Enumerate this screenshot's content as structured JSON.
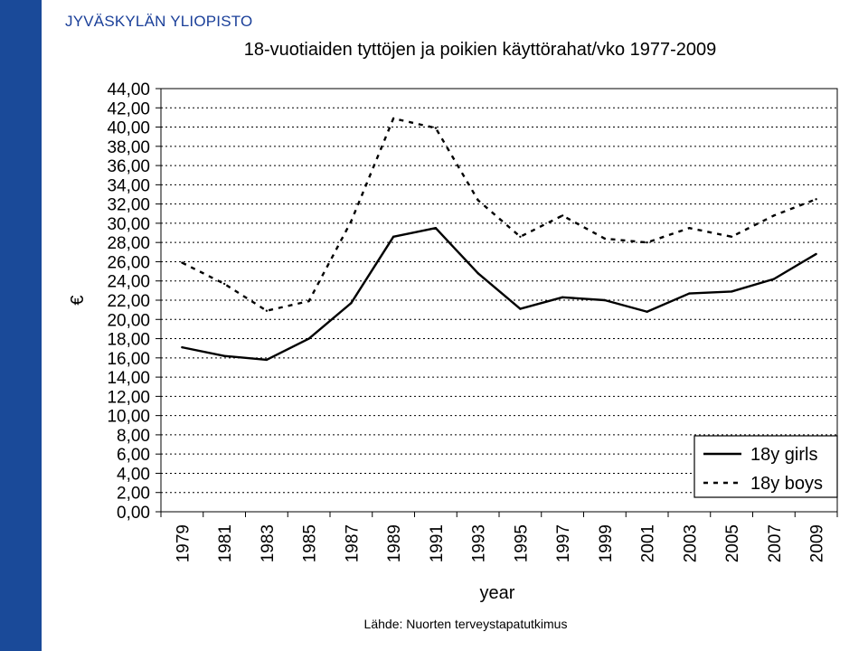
{
  "header": {
    "university": "JYVÄSKYLÄN YLIOPISTO",
    "title": "18-vuotiaiden tyttöjen ja poikien käyttörahat/vko 1977-2009"
  },
  "footer": {
    "source": "Lähde: Nuorten terveystapatutkimus"
  },
  "colors": {
    "side_band": "#1a4a99",
    "university_text": "#1a3f99",
    "series": "#000000",
    "grid": "#000000"
  },
  "chart_data": {
    "type": "line",
    "title": "18-vuotiaiden tyttöjen ja poikien käyttörahat/vko 1977-2009",
    "xlabel": "year",
    "ylabel": "€",
    "x": [
      "1979",
      "1981",
      "1983",
      "1985",
      "1987",
      "1989",
      "1991",
      "1993",
      "1995",
      "1997",
      "1999",
      "2001",
      "2003",
      "2005",
      "2007",
      "2009"
    ],
    "y_ticks": [
      "0,00",
      "2,00",
      "4,00",
      "6,00",
      "8,00",
      "10,00",
      "12,00",
      "14,00",
      "16,00",
      "18,00",
      "20,00",
      "22,00",
      "24,00",
      "26,00",
      "28,00",
      "30,00",
      "32,00",
      "34,00",
      "36,00",
      "38,00",
      "40,00",
      "42,00",
      "44,00"
    ],
    "ylim": [
      0,
      44
    ],
    "grid": "horizontal dotted",
    "legend_position": "bottom-right",
    "series": [
      {
        "name": "18y girls",
        "style": "solid",
        "values": [
          17.1,
          16.2,
          15.8,
          18.0,
          21.7,
          28.6,
          29.5,
          24.8,
          21.1,
          22.3,
          22.0,
          20.8,
          22.7,
          22.9,
          24.2,
          26.8
        ]
      },
      {
        "name": "18y boys",
        "style": "dashed",
        "values": [
          25.9,
          23.7,
          20.9,
          21.9,
          30.2,
          40.9,
          39.9,
          32.4,
          28.6,
          30.8,
          28.4,
          28.0,
          29.5,
          28.6,
          30.8,
          32.5
        ]
      }
    ]
  }
}
